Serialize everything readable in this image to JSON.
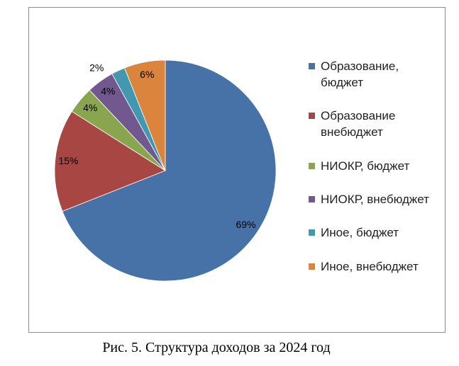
{
  "chart_data": {
    "type": "pie",
    "categories": [
      "Образование, бюджет",
      "Образование внебюджет",
      "НИОКР, бюджет",
      "НИОКР, внебюджет",
      "Иное, бюджет",
      "Иное, внебюджет"
    ],
    "values": [
      69,
      15,
      4,
      4,
      2,
      6
    ],
    "value_labels": [
      "69%",
      "15%",
      "4%",
      "4%",
      "2%",
      "6%"
    ],
    "colors": [
      "#4672a8",
      "#a84644",
      "#89a54e",
      "#71588f",
      "#4198af",
      "#db843d"
    ],
    "legend": "right",
    "caption": "Рис. 5. Структура доходов за 2024 год"
  }
}
